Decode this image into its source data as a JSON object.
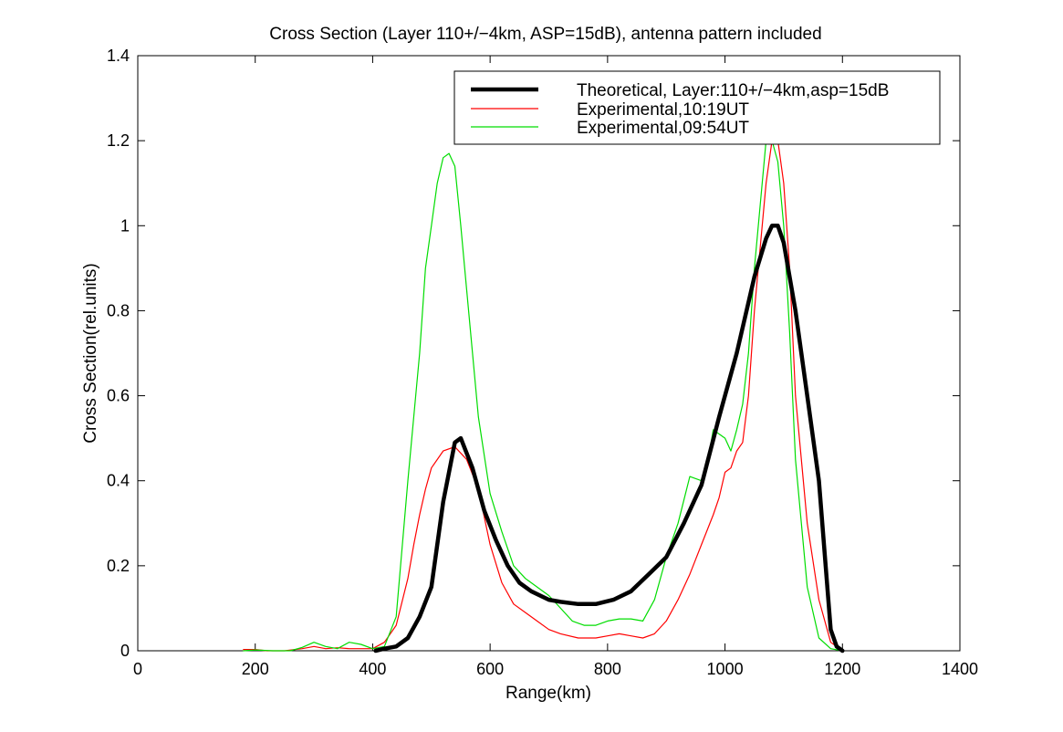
{
  "chart_data": {
    "type": "line",
    "title": "Cross Section (Layer 110+/−4km, ASP=15dB), antenna pattern included",
    "xlabel": "Range(km)",
    "ylabel": "Cross Section(rel.units)",
    "xlim": [
      0,
      1400
    ],
    "ylim": [
      0,
      1.4
    ],
    "xticks": [
      0,
      200,
      400,
      600,
      800,
      1000,
      1200,
      1400
    ],
    "xtick_labels": [
      "0",
      "200",
      "400",
      "600",
      "800",
      "1000",
      "1200",
      "1400"
    ],
    "yticks": [
      0,
      0.2,
      0.4,
      0.6,
      0.8,
      1,
      1.2,
      1.4
    ],
    "ytick_labels": [
      "0",
      "0.2",
      "0.4",
      "0.6",
      "0.8",
      "1",
      "1.2",
      "1.4"
    ],
    "grid": false,
    "legend_position": "top-right",
    "series": [
      {
        "name": "Theoretical, Layer:110+/−4km,asp=15dB",
        "color": "#000000",
        "line": "thick",
        "x": [
          405,
          420,
          440,
          460,
          480,
          500,
          520,
          540,
          550,
          570,
          590,
          610,
          630,
          650,
          670,
          700,
          720,
          750,
          780,
          810,
          840,
          870,
          900,
          930,
          960,
          990,
          1020,
          1050,
          1070,
          1080,
          1090,
          1100,
          1120,
          1140,
          1160,
          1180,
          1190,
          1200
        ],
        "y": [
          0.0,
          0.005,
          0.01,
          0.03,
          0.08,
          0.15,
          0.35,
          0.49,
          0.5,
          0.43,
          0.33,
          0.26,
          0.2,
          0.16,
          0.14,
          0.12,
          0.115,
          0.11,
          0.11,
          0.12,
          0.14,
          0.18,
          0.22,
          0.3,
          0.39,
          0.55,
          0.7,
          0.88,
          0.97,
          1.0,
          1.0,
          0.96,
          0.8,
          0.6,
          0.4,
          0.05,
          0.01,
          0.0
        ]
      },
      {
        "name": "Experimental,10:19UT",
        "color": "#ff0000",
        "line": "thin",
        "x": [
          180,
          200,
          220,
          250,
          280,
          300,
          320,
          340,
          360,
          380,
          400,
          420,
          440,
          460,
          470,
          480,
          490,
          500,
          520,
          540,
          560,
          580,
          600,
          620,
          640,
          660,
          680,
          700,
          720,
          750,
          780,
          800,
          820,
          840,
          860,
          880,
          900,
          920,
          940,
          960,
          980,
          990,
          1000,
          1010,
          1020,
          1030,
          1040,
          1050,
          1060,
          1070,
          1080,
          1090,
          1100,
          1110,
          1120,
          1140,
          1160,
          1180,
          1200
        ],
        "y": [
          0.003,
          0.003,
          0.0,
          0.0,
          0.005,
          0.01,
          0.005,
          0.007,
          0.005,
          0.005,
          0.005,
          0.02,
          0.06,
          0.17,
          0.25,
          0.32,
          0.38,
          0.43,
          0.47,
          0.48,
          0.45,
          0.38,
          0.25,
          0.16,
          0.11,
          0.09,
          0.07,
          0.05,
          0.04,
          0.03,
          0.03,
          0.035,
          0.04,
          0.035,
          0.03,
          0.04,
          0.07,
          0.12,
          0.18,
          0.25,
          0.32,
          0.36,
          0.42,
          0.43,
          0.47,
          0.49,
          0.6,
          0.8,
          0.95,
          1.1,
          1.2,
          1.2,
          1.1,
          0.9,
          0.6,
          0.3,
          0.12,
          0.02,
          0.0
        ]
      },
      {
        "name": "Experimental,09:54UT",
        "color": "#00dd00",
        "line": "thin",
        "x": [
          180,
          200,
          230,
          260,
          280,
          300,
          320,
          340,
          360,
          380,
          400,
          420,
          440,
          460,
          480,
          490,
          500,
          510,
          520,
          530,
          540,
          550,
          560,
          580,
          600,
          620,
          640,
          660,
          680,
          700,
          720,
          740,
          760,
          780,
          800,
          820,
          840,
          860,
          880,
          900,
          920,
          940,
          960,
          970,
          980,
          990,
          1000,
          1010,
          1020,
          1030,
          1040,
          1050,
          1060,
          1070,
          1080,
          1090,
          1100,
          1110,
          1120,
          1140,
          1160,
          1180,
          1200
        ],
        "y": [
          0.0,
          0.002,
          0.0,
          0.0,
          0.008,
          0.02,
          0.01,
          0.005,
          0.02,
          0.015,
          0.005,
          0.01,
          0.08,
          0.4,
          0.7,
          0.9,
          1.0,
          1.1,
          1.16,
          1.17,
          1.14,
          1.0,
          0.85,
          0.55,
          0.37,
          0.28,
          0.2,
          0.17,
          0.15,
          0.13,
          0.1,
          0.07,
          0.06,
          0.06,
          0.07,
          0.075,
          0.075,
          0.07,
          0.12,
          0.22,
          0.3,
          0.41,
          0.4,
          0.44,
          0.52,
          0.51,
          0.5,
          0.47,
          0.52,
          0.58,
          0.7,
          0.9,
          1.05,
          1.2,
          1.2,
          1.15,
          1.0,
          0.75,
          0.45,
          0.15,
          0.03,
          0.005,
          0.0
        ]
      }
    ]
  }
}
